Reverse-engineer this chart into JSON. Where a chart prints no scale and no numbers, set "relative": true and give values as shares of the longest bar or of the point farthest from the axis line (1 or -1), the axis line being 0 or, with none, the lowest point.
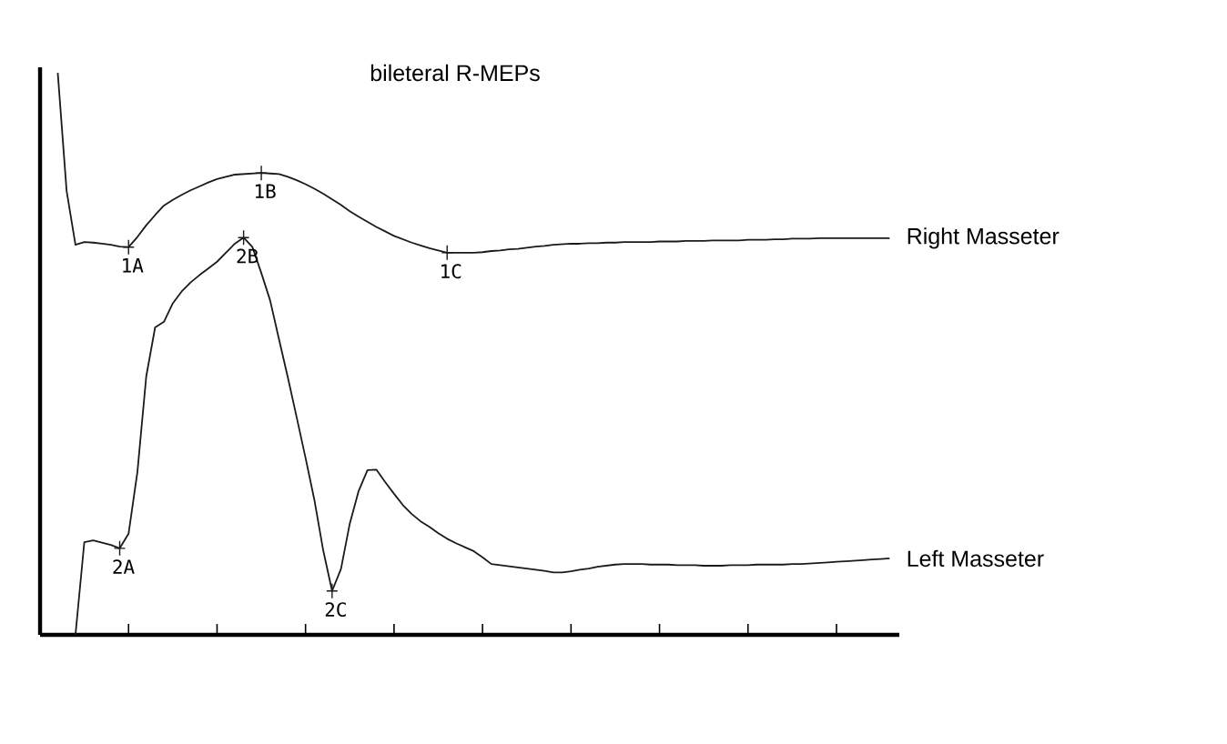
{
  "chart_data": {
    "type": "line",
    "title": "bileteral R-MEPs",
    "relative": true,
    "categories": [
      null,
      null,
      null,
      null,
      null,
      null,
      null,
      null,
      null,
      null,
      null,
      null,
      null,
      null,
      null,
      null,
      null,
      null,
      null,
      null,
      null,
      null,
      null,
      null,
      null,
      null,
      null,
      null,
      null,
      null,
      null,
      null,
      null,
      null,
      null,
      null,
      null,
      null,
      null,
      null,
      null,
      null,
      null,
      null,
      null,
      null,
      null,
      null,
      null,
      null,
      null,
      null,
      null,
      null,
      null,
      null,
      null,
      null,
      null,
      null,
      null,
      null,
      null,
      null,
      null,
      null,
      null,
      null,
      null,
      null,
      null,
      null,
      null,
      null,
      null,
      null,
      null,
      null,
      null,
      null,
      null,
      null,
      null,
      null,
      null,
      null,
      null,
      null,
      null,
      null,
      null,
      null,
      null,
      null,
      null
    ],
    "series": [
      {
        "name": "Right Masseter",
        "color": "#1a1a1a",
        "values": [
          1.0,
          0.79,
          0.694,
          0.699,
          0.698,
          0.696,
          0.694,
          0.691,
          0.69,
          0.708,
          0.729,
          0.747,
          0.764,
          0.774,
          0.783,
          0.791,
          0.798,
          0.805,
          0.811,
          0.815,
          0.819,
          0.82,
          0.821,
          0.822,
          0.821,
          0.82,
          0.815,
          0.809,
          0.802,
          0.794,
          0.785,
          0.775,
          0.765,
          0.754,
          0.744,
          0.735,
          0.726,
          0.718,
          0.71,
          0.704,
          0.698,
          0.693,
          0.688,
          0.684,
          0.68,
          0.68,
          0.68,
          0.68,
          0.681,
          0.683,
          0.684,
          0.686,
          0.687,
          0.689,
          0.691,
          0.692,
          0.694,
          0.695,
          0.696,
          0.696,
          0.697,
          0.697,
          0.698,
          0.698,
          0.699,
          0.699,
          0.699,
          0.699,
          0.7,
          0.7,
          0.7,
          0.701,
          0.701,
          0.701,
          0.702,
          0.702,
          0.702,
          0.702,
          0.703,
          0.703,
          0.703,
          0.704,
          0.704,
          0.705,
          0.705,
          0.705,
          0.706,
          0.706,
          0.706,
          0.706,
          0.706,
          0.706,
          0.706,
          0.706,
          0.706
        ]
      },
      {
        "name": "Left Masseter",
        "color": "#1a1a1a",
        "values": [
          null,
          null,
          0.0,
          0.165,
          0.168,
          0.164,
          0.16,
          0.154,
          0.18,
          0.29,
          0.46,
          0.547,
          0.557,
          0.59,
          0.611,
          0.627,
          0.64,
          0.652,
          0.664,
          0.68,
          0.696,
          0.707,
          0.69,
          0.644,
          0.595,
          0.526,
          0.458,
          0.387,
          0.315,
          0.24,
          0.15,
          0.078,
          0.117,
          0.198,
          0.256,
          0.293,
          0.294,
          0.272,
          0.251,
          0.231,
          0.215,
          0.202,
          0.192,
          0.181,
          0.171,
          0.163,
          0.156,
          0.149,
          0.138,
          0.126,
          0.124,
          0.122,
          0.12,
          0.118,
          0.116,
          0.114,
          0.111,
          0.111,
          0.113,
          0.116,
          0.118,
          0.121,
          0.123,
          0.125,
          0.126,
          0.126,
          0.126,
          0.125,
          0.125,
          0.125,
          0.124,
          0.124,
          0.124,
          0.123,
          0.123,
          0.123,
          0.124,
          0.124,
          0.124,
          0.125,
          0.125,
          0.125,
          0.125,
          0.126,
          0.126,
          0.127,
          0.128,
          0.129,
          0.13,
          0.131,
          0.132,
          0.133,
          0.134,
          0.135,
          0.136
        ]
      }
    ],
    "annotations": [
      {
        "text": "1A",
        "y": 0.69
      },
      {
        "text": "1B",
        "y": 0.822
      },
      {
        "text": "1C",
        "y": 0.68
      },
      {
        "text": "2A",
        "y": 0.154
      },
      {
        "text": "2B",
        "y": 0.707
      },
      {
        "text": "2C",
        "y": 0.078
      }
    ]
  }
}
